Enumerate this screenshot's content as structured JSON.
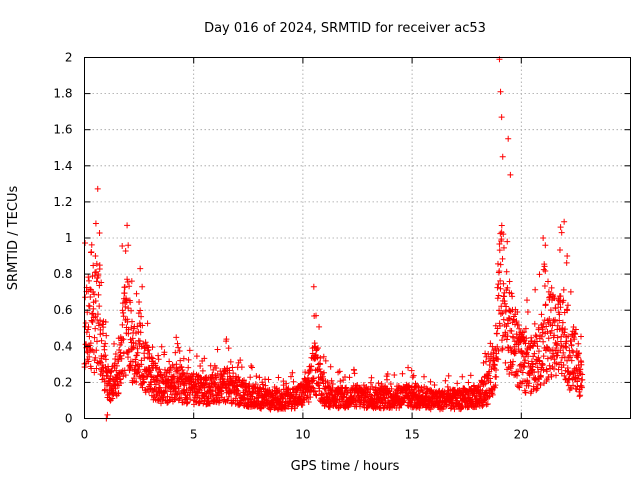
{
  "chart_data": {
    "type": "scatter",
    "title": "Day 016 of 2024, SRMTID for receiver ac53",
    "xlabel": "GPS time / hours",
    "ylabel": "SRMTID / TECUs",
    "xlim": [
      0,
      25
    ],
    "ylim": [
      0,
      2
    ],
    "xticks": [
      0,
      5,
      10,
      15,
      20
    ],
    "yticks": [
      0,
      0.2,
      0.4,
      0.6,
      0.8,
      1,
      1.2,
      1.4,
      1.6,
      1.8,
      2
    ],
    "xtick_labels": [
      "0",
      "5",
      "10",
      "15",
      "20"
    ],
    "ytick_labels": [
      "0",
      "0.2",
      "0.4",
      "0.6",
      "0.8",
      "1",
      "1.2",
      "1.4",
      "1.6",
      "1.8",
      "2"
    ],
    "grid": true,
    "marker": "+",
    "color": "#ff0000",
    "x_step_hours": 0.0083,
    "series": [
      {
        "name": "SRMTID",
        "envelope": {
          "x": [
            0,
            0.2,
            0.4,
            0.6,
            0.8,
            1.0,
            1.1,
            1.2,
            1.5,
            1.8,
            2.0,
            2.2,
            2.5,
            2.7,
            3.0,
            3.5,
            4.0,
            4.3,
            4.6,
            5.0,
            5.5,
            6.0,
            6.5,
            7.0,
            7.5,
            8.0,
            8.5,
            9.0,
            9.5,
            10.0,
            10.3,
            10.5,
            10.7,
            11.0,
            11.5,
            12.0,
            12.5,
            13.0,
            13.5,
            14.0,
            14.5,
            15.0,
            15.5,
            16.0,
            16.5,
            17.0,
            17.5,
            18.0,
            18.5,
            18.8,
            19.0,
            19.2,
            19.5,
            19.8,
            20.0,
            20.3,
            20.6,
            21.0,
            21.3,
            21.6,
            21.9,
            22.2,
            22.5,
            22.8
          ],
          "y": [
            0.45,
            0.65,
            0.55,
            0.6,
            0.4,
            0.25,
            0.2,
            0.18,
            0.25,
            0.5,
            0.55,
            0.35,
            0.45,
            0.35,
            0.25,
            0.18,
            0.2,
            0.22,
            0.18,
            0.17,
            0.16,
            0.17,
            0.2,
            0.16,
            0.14,
            0.12,
            0.11,
            0.11,
            0.12,
            0.14,
            0.2,
            0.3,
            0.25,
            0.15,
            0.12,
            0.12,
            0.13,
            0.12,
            0.12,
            0.12,
            0.13,
            0.13,
            0.12,
            0.11,
            0.11,
            0.11,
            0.12,
            0.13,
            0.18,
            0.35,
            0.8,
            0.7,
            0.5,
            0.4,
            0.32,
            0.3,
            0.32,
            0.4,
            0.5,
            0.45,
            0.55,
            0.35,
            0.35,
            0.2
          ]
        },
        "peaks": [
          {
            "x": 0.3,
            "y": 0.92
          },
          {
            "x": 0.5,
            "y": 0.9
          },
          {
            "x": 0.7,
            "y": 0.85
          },
          {
            "x": 1.95,
            "y": 1.07
          },
          {
            "x": 2.0,
            "y": 0.96
          },
          {
            "x": 2.55,
            "y": 0.83
          },
          {
            "x": 6.6,
            "y": 0.39
          },
          {
            "x": 10.5,
            "y": 0.73
          },
          {
            "x": 10.6,
            "y": 0.57
          },
          {
            "x": 19.0,
            "y": 1.99
          },
          {
            "x": 19.05,
            "y": 1.81
          },
          {
            "x": 19.1,
            "y": 1.67
          },
          {
            "x": 19.15,
            "y": 1.45
          },
          {
            "x": 19.4,
            "y": 1.55
          },
          {
            "x": 19.5,
            "y": 1.35
          },
          {
            "x": 21.0,
            "y": 1.0
          },
          {
            "x": 21.1,
            "y": 0.96
          },
          {
            "x": 21.8,
            "y": 1.06
          },
          {
            "x": 21.85,
            "y": 1.03
          },
          {
            "x": 22.1,
            "y": 0.9
          }
        ],
        "lows": [
          {
            "x": 1.0,
            "y": 0.0
          },
          {
            "x": 1.05,
            "y": 0.02
          }
        ]
      }
    ]
  }
}
